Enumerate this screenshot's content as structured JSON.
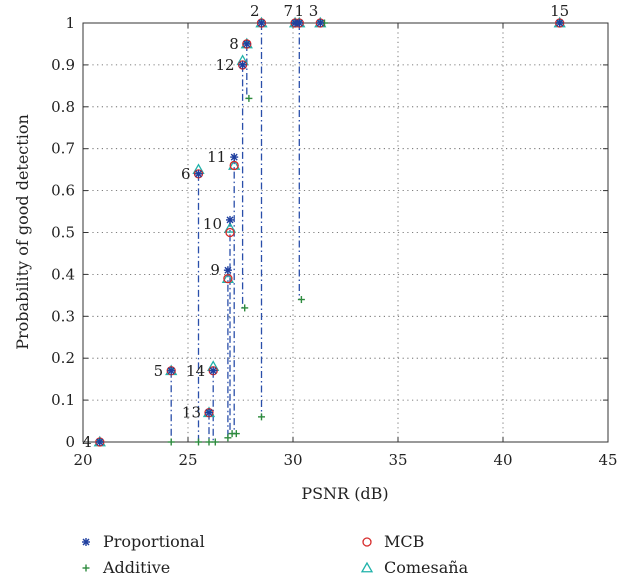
{
  "chart_data": {
    "type": "scatter",
    "xlabel": "PSNR (dB)",
    "ylabel": "Probability of good detection",
    "xlim": [
      20,
      45
    ],
    "ylim": [
      0,
      1
    ],
    "xticks": [
      "20",
      "25",
      "30",
      "35",
      "40",
      "45"
    ],
    "yticks": [
      "0",
      "0.1",
      "0.2",
      "0.3",
      "0.4",
      "0.5",
      "0.6",
      "0.7",
      "0.8",
      "0.9",
      "1"
    ],
    "grid": "dotted",
    "legend_position": "bottom",
    "colors": {
      "Proportional": "#1f3f9f",
      "Additive": "#2e8b3e",
      "MCB": "#d62a2a",
      "Comesaña": "#20b2aa",
      "stem": "#2a4faa"
    },
    "series": [
      {
        "name": "Proportional",
        "marker": "asterisk",
        "points": [
          {
            "label": "1",
            "x": 30.3,
            "y": 1.0
          },
          {
            "label": "2",
            "x": 28.5,
            "y": 1.0
          },
          {
            "label": "3",
            "x": 31.3,
            "y": 1.0
          },
          {
            "label": "4",
            "x": 20.8,
            "y": 0.0
          },
          {
            "label": "5",
            "x": 24.2,
            "y": 0.17
          },
          {
            "label": "6",
            "x": 25.5,
            "y": 0.64
          },
          {
            "label": "7",
            "x": 30.1,
            "y": 1.0
          },
          {
            "label": "8",
            "x": 27.8,
            "y": 0.95
          },
          {
            "label": "9",
            "x": 26.9,
            "y": 0.41
          },
          {
            "label": "10",
            "x": 27.0,
            "y": 0.53
          },
          {
            "label": "11",
            "x": 27.2,
            "y": 0.68
          },
          {
            "label": "12",
            "x": 27.6,
            "y": 0.9
          },
          {
            "label": "13",
            "x": 26.0,
            "y": 0.07
          },
          {
            "label": "14",
            "x": 26.2,
            "y": 0.17
          },
          {
            "label": "15",
            "x": 42.7,
            "y": 1.0
          }
        ]
      },
      {
        "name": "Additive",
        "marker": "plus",
        "points": [
          {
            "label": "1",
            "x": 30.4,
            "y": 0.34
          },
          {
            "label": "2",
            "x": 28.5,
            "y": 0.06
          },
          {
            "label": "3",
            "x": 31.5,
            "y": 1.0
          },
          {
            "label": "4",
            "x": 20.8,
            "y": 0.0
          },
          {
            "label": "5",
            "x": 24.2,
            "y": 0.0
          },
          {
            "label": "6",
            "x": 25.5,
            "y": 0.0
          },
          {
            "label": "7",
            "x": 30.2,
            "y": 1.0
          },
          {
            "label": "8",
            "x": 27.9,
            "y": 0.82
          },
          {
            "label": "9",
            "x": 26.9,
            "y": 0.01
          },
          {
            "label": "10",
            "x": 27.1,
            "y": 0.02
          },
          {
            "label": "11",
            "x": 27.3,
            "y": 0.02
          },
          {
            "label": "12",
            "x": 27.7,
            "y": 0.32
          },
          {
            "label": "13",
            "x": 26.0,
            "y": 0.0
          },
          {
            "label": "14",
            "x": 26.3,
            "y": 0.0
          },
          {
            "label": "15",
            "x": 42.7,
            "y": 1.0
          }
        ]
      },
      {
        "name": "MCB",
        "marker": "circle",
        "points": [
          {
            "label": "1",
            "x": 30.3,
            "y": 1.0
          },
          {
            "label": "2",
            "x": 28.5,
            "y": 1.0
          },
          {
            "label": "3",
            "x": 31.3,
            "y": 1.0
          },
          {
            "label": "4",
            "x": 20.8,
            "y": 0.0
          },
          {
            "label": "5",
            "x": 24.2,
            "y": 0.17
          },
          {
            "label": "6",
            "x": 25.5,
            "y": 0.64
          },
          {
            "label": "7",
            "x": 30.1,
            "y": 1.0
          },
          {
            "label": "8",
            "x": 27.8,
            "y": 0.95
          },
          {
            "label": "9",
            "x": 26.9,
            "y": 0.39
          },
          {
            "label": "10",
            "x": 27.0,
            "y": 0.5
          },
          {
            "label": "11",
            "x": 27.2,
            "y": 0.66
          },
          {
            "label": "12",
            "x": 27.6,
            "y": 0.9
          },
          {
            "label": "13",
            "x": 26.0,
            "y": 0.07
          },
          {
            "label": "14",
            "x": 26.2,
            "y": 0.17
          },
          {
            "label": "15",
            "x": 42.7,
            "y": 1.0
          }
        ]
      },
      {
        "name": "Comesaña",
        "marker": "triangle",
        "points": [
          {
            "label": "1",
            "x": 30.3,
            "y": 1.0
          },
          {
            "label": "2",
            "x": 28.5,
            "y": 1.0
          },
          {
            "label": "3",
            "x": 31.3,
            "y": 1.0
          },
          {
            "label": "4",
            "x": 20.8,
            "y": 0.0
          },
          {
            "label": "5",
            "x": 24.2,
            "y": 0.17
          },
          {
            "label": "6",
            "x": 25.5,
            "y": 0.65
          },
          {
            "label": "7",
            "x": 30.1,
            "y": 1.0
          },
          {
            "label": "8",
            "x": 27.8,
            "y": 0.95
          },
          {
            "label": "9",
            "x": 26.9,
            "y": 0.39
          },
          {
            "label": "10",
            "x": 27.0,
            "y": 0.51
          },
          {
            "label": "11",
            "x": 27.2,
            "y": 0.66
          },
          {
            "label": "12",
            "x": 27.6,
            "y": 0.91
          },
          {
            "label": "13",
            "x": 26.0,
            "y": 0.07
          },
          {
            "label": "14",
            "x": 26.2,
            "y": 0.18
          },
          {
            "label": "15",
            "x": 42.7,
            "y": 1.0
          }
        ]
      }
    ],
    "point_labels": [
      {
        "text": "4",
        "x": 20.8,
        "y": 0.0,
        "anchor": "left"
      },
      {
        "text": "5",
        "x": 24.2,
        "y": 0.17,
        "anchor": "left"
      },
      {
        "text": "6",
        "x": 25.5,
        "y": 0.64,
        "anchor": "left"
      },
      {
        "text": "7",
        "x": 30.1,
        "y": 1.0,
        "anchor": "above-left"
      },
      {
        "text": "1",
        "x": 30.3,
        "y": 1.0,
        "anchor": "above"
      },
      {
        "text": "2",
        "x": 28.5,
        "y": 1.0,
        "anchor": "above-left"
      },
      {
        "text": "3",
        "x": 31.3,
        "y": 1.0,
        "anchor": "above-left"
      },
      {
        "text": "8",
        "x": 27.8,
        "y": 0.95,
        "anchor": "left"
      },
      {
        "text": "9",
        "x": 26.9,
        "y": 0.41,
        "anchor": "left"
      },
      {
        "text": "10",
        "x": 27.0,
        "y": 0.52,
        "anchor": "left"
      },
      {
        "text": "11",
        "x": 27.2,
        "y": 0.68,
        "anchor": "left"
      },
      {
        "text": "12",
        "x": 27.6,
        "y": 0.9,
        "anchor": "left"
      },
      {
        "text": "13",
        "x": 26.0,
        "y": 0.07,
        "anchor": "left"
      },
      {
        "text": "14",
        "x": 26.2,
        "y": 0.17,
        "anchor": "left"
      },
      {
        "text": "15",
        "x": 42.7,
        "y": 1.0,
        "anchor": "above"
      }
    ]
  }
}
